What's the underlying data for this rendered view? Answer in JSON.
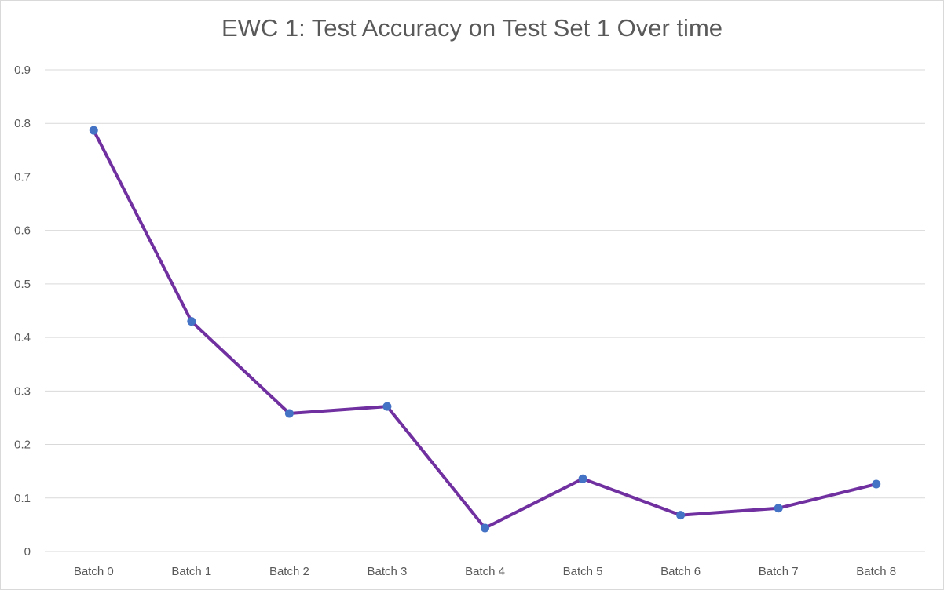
{
  "chart_data": {
    "type": "line",
    "title": "EWC 1: Test Accuracy on Test Set 1 Over time",
    "xlabel": "",
    "ylabel": "",
    "categories": [
      "Batch 0",
      "Batch 1",
      "Batch 2",
      "Batch 3",
      "Batch 4",
      "Batch 5",
      "Batch 6",
      "Batch 7",
      "Batch 8"
    ],
    "series": [
      {
        "values": [
          0.787,
          0.43,
          0.258,
          0.271,
          0.044,
          0.136,
          0.068,
          0.081,
          0.126
        ]
      }
    ],
    "ylim": [
      0,
      0.9
    ],
    "yticks": [
      "0",
      "0.1",
      "0.2",
      "0.3",
      "0.4",
      "0.5",
      "0.6",
      "0.7",
      "0.8",
      "0.9"
    ],
    "grid": "horizontal",
    "legend": "none",
    "colors": {
      "line": "#7030a0",
      "marker": "#4472c4",
      "grid": "#d9d9d9",
      "text": "#595959"
    }
  }
}
